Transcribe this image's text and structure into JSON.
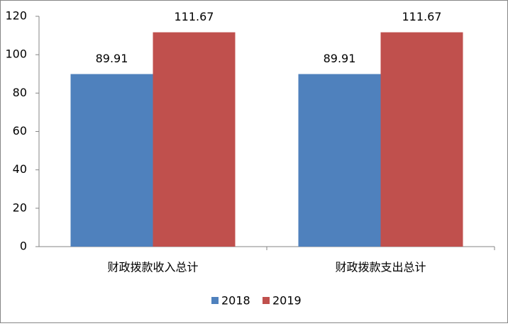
{
  "chart_data": {
    "type": "bar",
    "categories": [
      "财政拨款收入总计",
      "财政拨款支出总计"
    ],
    "series": [
      {
        "name": "2018",
        "color": "#4f81bd",
        "values": [
          89.91,
          89.91
        ]
      },
      {
        "name": "2019",
        "color": "#c0504d",
        "values": [
          111.67,
          111.67
        ]
      }
    ],
    "ylim": [
      0,
      120
    ],
    "yticks": [
      0,
      20,
      40,
      60,
      80,
      100,
      120
    ],
    "grid": false,
    "legend": "bottom"
  }
}
